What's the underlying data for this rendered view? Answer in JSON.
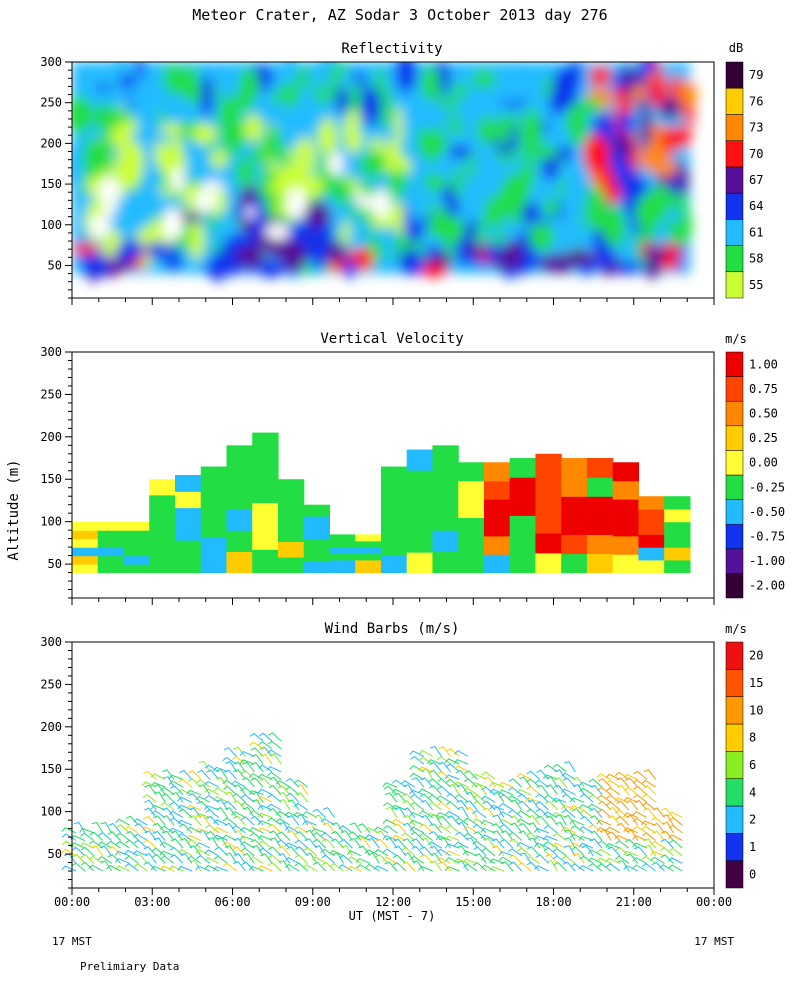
{
  "title": "Meteor Crater, AZ  Sodar   3 October 2013  day 276",
  "y_axis_label": "Altitude (m)",
  "x_axis_label": "UT  (MST - 7)",
  "x_tick_labels": [
    "00:00",
    "03:00",
    "06:00",
    "09:00",
    "12:00",
    "15:00",
    "18:00",
    "21:00",
    "00:00"
  ],
  "y_tick_labels": [
    "50",
    "100",
    "150",
    "200",
    "250",
    "300"
  ],
  "footer": {
    "left_mst": "17 MST",
    "right_mst": "17 MST",
    "note": "Prelimiary Data"
  },
  "chart_data": [
    {
      "type": "heatmap",
      "title": "Reflectivity",
      "xlabel": "UT  (MST - 7)",
      "ylabel": "Altitude (m)",
      "xlim": [
        0,
        24
      ],
      "ylim": [
        10,
        300
      ],
      "data_extent_hours": [
        0,
        23.1
      ],
      "data_altitude_range": [
        40,
        280
      ],
      "colorbar": {
        "unit": "dB",
        "levels": [
          55,
          58,
          61,
          64,
          67,
          70,
          73,
          76,
          79
        ],
        "colors": [
          "#ccff33",
          "#22dd44",
          "#22bbff",
          "#1133ee",
          "#551199",
          "#ff1111",
          "#ff8800",
          "#ffcc00",
          "#330033"
        ]
      },
      "time_series_h": [
        0,
        1,
        2,
        3,
        4,
        5,
        6,
        7,
        8,
        9,
        10,
        11,
        12,
        13,
        14,
        15,
        16,
        17,
        18,
        19,
        20,
        21,
        22,
        23
      ],
      "altitude_levels_m": [
        40,
        65,
        90,
        115,
        140,
        165,
        190,
        215,
        240,
        265,
        280
      ],
      "description": "High reflectivity (64-70 dB) near surface 40-70 m, strongest 04:00-09:00; 55-58 dB aloft 00:00-12:00; 70-79 dB above 150 m after 20:00"
    },
    {
      "type": "heatmap",
      "title": "Vertical Velocity",
      "xlabel": "UT  (MST - 7)",
      "ylabel": "Altitude (m)",
      "xlim": [
        0,
        24
      ],
      "ylim": [
        10,
        300
      ],
      "data_extent_hours": [
        0,
        23.1
      ],
      "colorbar": {
        "unit": "m/s",
        "levels": [
          -2.0,
          -1.0,
          -0.75,
          -0.5,
          -0.25,
          0.0,
          0.25,
          0.5,
          0.75,
          1.0
        ],
        "labels": [
          "-2.00",
          "-1.00",
          "-0.75",
          "-0.50",
          "-0.25",
          "0.00",
          "0.25",
          "0.50",
          "0.75",
          "1.00"
        ],
        "colors": [
          "#330033",
          "#551199",
          "#1133ee",
          "#22bbff",
          "#22dd44",
          "#ffff33",
          "#ffcc00",
          "#ff8800",
          "#ff4400",
          "#ee0000"
        ]
      },
      "data_top_altitude_m": [
        100,
        100,
        100,
        150,
        155,
        165,
        190,
        205,
        150,
        120,
        85,
        85,
        165,
        185,
        190,
        170,
        170,
        175,
        180,
        175,
        175,
        170,
        130,
        130
      ],
      "description": "Mostly -0.25 to 0.25 m/s below 150 m before 12:00; upward 0.75-1.00 m/s from 15:00 to 22:00 between 80-170 m"
    },
    {
      "type": "scatter",
      "title": "Wind Barbs (m/s)",
      "xlabel": "UT  (MST - 7)",
      "ylabel": "Altitude (m)",
      "xlim": [
        0,
        24
      ],
      "ylim": [
        10,
        300
      ],
      "colorbar": {
        "unit": "m/s",
        "levels": [
          0,
          1,
          2,
          4,
          6,
          8,
          10,
          15,
          20
        ],
        "colors": [
          "#440044",
          "#1133ee",
          "#22bbff",
          "#22dd66",
          "#88ee22",
          "#ffcc00",
          "#ff9900",
          "#ff5500",
          "#ee1111"
        ]
      },
      "barb_top_altitude_m": [
        80,
        80,
        90,
        140,
        145,
        150,
        170,
        190,
        130,
        100,
        80,
        80,
        130,
        165,
        165,
        140,
        130,
        140,
        150,
        130,
        145,
        140,
        100
      ],
      "description": "Winds mostly 2-6 m/s between 30-190 m; 8-10 m/s near 70-140 m after 20:00"
    }
  ]
}
